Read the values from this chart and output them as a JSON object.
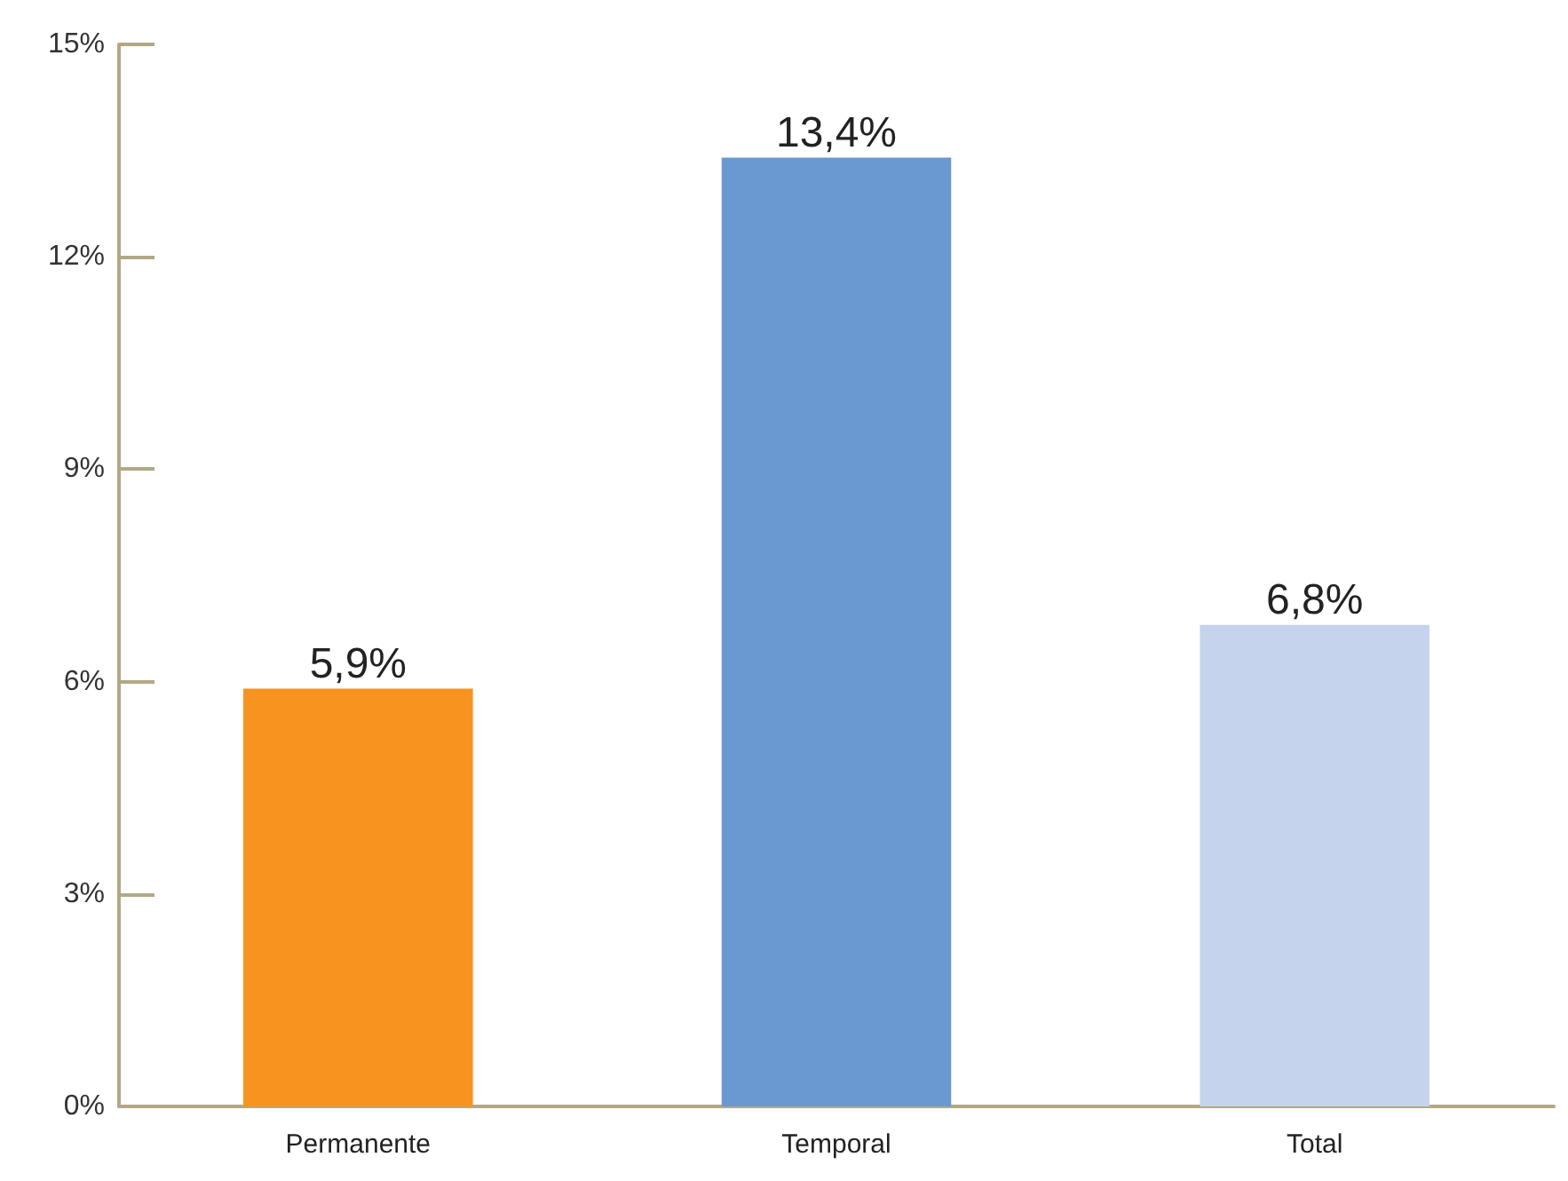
{
  "chart_data": {
    "type": "bar",
    "categories": [
      "Permanente",
      "Temporal",
      "Total"
    ],
    "values": [
      5.9,
      13.4,
      6.8
    ],
    "colors": [
      "#f7931e",
      "#6a98d0",
      "#c5d3ec"
    ],
    "value_labels": [
      "5,9%",
      "13,4%",
      "6,8%"
    ],
    "ylim": [
      0,
      15
    ],
    "yticks": [
      {
        "value": 0,
        "label": "0%"
      },
      {
        "value": 3,
        "label": "3%"
      },
      {
        "value": 6,
        "label": "6%"
      },
      {
        "value": 9,
        "label": "9%"
      },
      {
        "value": 12,
        "label": "12%"
      },
      {
        "value": 15,
        "label": "15%"
      }
    ],
    "grid": false
  }
}
